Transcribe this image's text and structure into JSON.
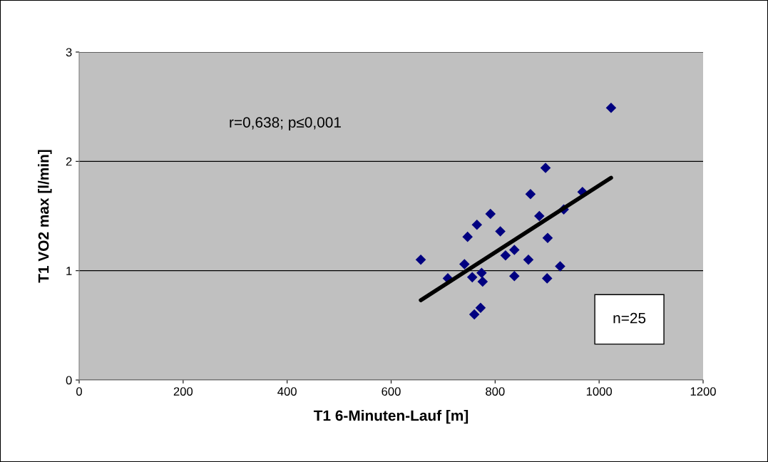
{
  "chart_data": {
    "type": "scatter",
    "xlabel": "T1 6-Minuten-Lauf [m]",
    "ylabel": "T1 VO2 max [l/min]",
    "xlim": [
      0,
      1200
    ],
    "xticks": [
      0,
      200,
      400,
      600,
      800,
      1000,
      1200
    ],
    "ylim": [
      0,
      3
    ],
    "yticks": [
      0,
      1,
      2,
      3
    ],
    "grid": "y",
    "legend": false,
    "annotations": [
      "r=0,638; p≤0,001",
      "n=25"
    ],
    "series": [
      {
        "marker": "diamond",
        "color": "#000080",
        "x": [
          657,
          709,
          741,
          747,
          765,
          756,
          774,
          776,
          772,
          760,
          791,
          810,
          820,
          837,
          837,
          864,
          868,
          885,
          897,
          901,
          900,
          925,
          932,
          968,
          1023
        ],
        "values": [
          1.1,
          0.93,
          1.06,
          1.31,
          1.42,
          0.94,
          0.98,
          0.9,
          0.66,
          0.6,
          1.52,
          1.36,
          1.14,
          1.19,
          0.95,
          1.1,
          1.7,
          1.5,
          1.94,
          1.3,
          0.93,
          1.04,
          1.56,
          1.72,
          2.49
        ]
      },
      {
        "type": "line",
        "marker": "none",
        "color": "#000000",
        "x": [
          657,
          1023
        ],
        "values": [
          0.73,
          1.85
        ]
      }
    ]
  }
}
